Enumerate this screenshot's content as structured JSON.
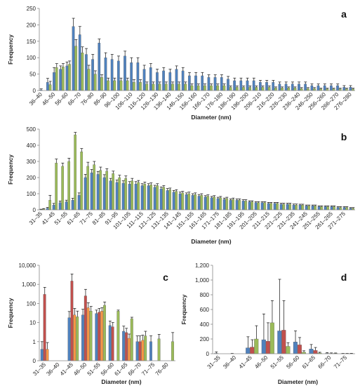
{
  "colors": {
    "blue": "#4F81BD",
    "red": "#C0504D",
    "green": "#9BBB59",
    "orange": "#F79646",
    "purple": "#8064A2"
  },
  "chart_data": [
    {
      "id": "a",
      "type": "bar",
      "letter": "a",
      "xlabel": "Diameter (nm)",
      "ylabel": "Frequency",
      "ylim": [
        0,
        250
      ],
      "yticks": [
        0,
        50,
        100,
        150,
        200,
        250
      ],
      "log": false,
      "categories": [
        "36–40",
        "41–45",
        "46–50",
        "51–55",
        "56–60",
        "61–65",
        "66–70",
        "71–75",
        "76–80",
        "81–85",
        "86–90",
        "91–95",
        "96–100",
        "101–105",
        "106–110",
        "111–115",
        "116–120",
        "121–125",
        "126–130",
        "131–135",
        "136–140",
        "141–145",
        "146–150",
        "151–155",
        "156–160",
        "161–165",
        "166–170",
        "171–175",
        "176–180",
        "181–185",
        "186–190",
        "191–195",
        "196–200",
        "201–205",
        "206–210",
        "211–215",
        "216–220",
        "221–225",
        "226–230",
        "231–235",
        "236–240",
        "241–245",
        "246–250",
        "251–255",
        "256–260",
        "261–265",
        "266–270",
        "271–275",
        "276–280"
      ],
      "tick_labels": [
        "36–40",
        "46–50",
        "56–60",
        "66–70",
        "76–80",
        "86–90",
        "96–100",
        "106–110",
        "116–120",
        "126–130",
        "136–140",
        "146–150",
        "156–160",
        "166–170",
        "176–180",
        "186–190",
        "196–200",
        "206–210",
        "216–220",
        "226–230",
        "236–240",
        "246–250",
        "256–260",
        "266–270",
        "276–280"
      ],
      "series": [
        {
          "color": "blue",
          "values": [
            2,
            25,
            55,
            65,
            75,
            195,
            170,
            110,
            95,
            145,
            100,
            95,
            90,
            105,
            85,
            85,
            65,
            70,
            55,
            60,
            55,
            65,
            60,
            45,
            45,
            45,
            40,
            40,
            40,
            35,
            30,
            30,
            30,
            30,
            25,
            25,
            25,
            20,
            20,
            20,
            20,
            20,
            15,
            15,
            15,
            15,
            15,
            10,
            10
          ],
          "err": [
            3,
            12,
            15,
            10,
            12,
            25,
            25,
            18,
            15,
            12,
            15,
            15,
            15,
            15,
            15,
            15,
            12,
            12,
            10,
            10,
            10,
            10,
            10,
            10,
            10,
            10,
            8,
            8,
            8,
            8,
            8,
            8,
            8,
            8,
            6,
            6,
            6,
            6,
            6,
            6,
            6,
            6,
            5,
            5,
            5,
            5,
            5,
            5,
            5
          ]
        },
        {
          "color": "green",
          "values": [
            0,
            18,
            70,
            72,
            80,
            135,
            115,
            65,
            50,
            40,
            30,
            30,
            30,
            30,
            25,
            25,
            20,
            20,
            20,
            20,
            20,
            20,
            20,
            15,
            15,
            15,
            15,
            15,
            15,
            10,
            10,
            10,
            10,
            10,
            10,
            10,
            8,
            8,
            8,
            8,
            6,
            6,
            6,
            5,
            5,
            5,
            5,
            5,
            5
          ],
          "err": [
            0,
            10,
            12,
            10,
            10,
            20,
            18,
            12,
            10,
            8,
            8,
            8,
            8,
            8,
            8,
            8,
            6,
            6,
            6,
            6,
            6,
            6,
            6,
            5,
            5,
            5,
            5,
            5,
            5,
            4,
            4,
            4,
            4,
            4,
            4,
            4,
            3,
            3,
            3,
            3,
            3,
            3,
            3,
            2,
            2,
            2,
            2,
            2,
            2
          ]
        }
      ]
    },
    {
      "id": "b",
      "type": "bar",
      "letter": "b",
      "xlabel": "Diameter (nm)",
      "ylabel": "Frequency",
      "ylim": [
        0,
        500
      ],
      "yticks": [
        0,
        100,
        200,
        300,
        400,
        500
      ],
      "log": false,
      "categories": [
        "31–35",
        "36–40",
        "41–45",
        "46–50",
        "51–55",
        "56–60",
        "61–65",
        "66–70",
        "71–75",
        "76–80",
        "81–85",
        "86–90",
        "91–95",
        "96–100",
        "101–105",
        "106–110",
        "111–115",
        "116–120",
        "121–125",
        "126–130",
        "131–135",
        "136–140",
        "141–145",
        "146–150",
        "151–155",
        "156–160",
        "161–165",
        "166–170",
        "171–175",
        "176–180",
        "181–185",
        "186–190",
        "191–195",
        "196–200",
        "201–205",
        "206–210",
        "211–215",
        "216–220",
        "221–225",
        "226–230",
        "231–235",
        "236–240",
        "241–245",
        "246–250",
        "251–255",
        "256–260",
        "261–265",
        "266–270",
        "271–275",
        "276–280"
      ],
      "tick_labels": [
        "31–35",
        "41–45",
        "51–55",
        "61–65",
        "71–75",
        "81–85",
        "91–95",
        "101–105",
        "111–115",
        "121–125",
        "131–135",
        "141–145",
        "151–155",
        "161–165",
        "171–175",
        "181–185",
        "191–195",
        "201–205",
        "211–215",
        "221–225",
        "231–235",
        "241–245",
        "251–255",
        "261–265",
        "271–275"
      ],
      "series": [
        {
          "color": "blue",
          "values": [
            2,
            10,
            30,
            45,
            50,
            60,
            90,
            200,
            230,
            220,
            200,
            180,
            170,
            165,
            160,
            160,
            150,
            150,
            140,
            130,
            120,
            110,
            100,
            95,
            90,
            85,
            80,
            75,
            70,
            65,
            60,
            60,
            55,
            50,
            45,
            45,
            40,
            40,
            35,
            35,
            30,
            30,
            25,
            25,
            20,
            20,
            20,
            15,
            15,
            10
          ],
          "err": [
            2,
            5,
            10,
            10,
            10,
            12,
            15,
            20,
            20,
            18,
            18,
            15,
            15,
            15,
            15,
            15,
            12,
            12,
            12,
            12,
            12,
            10,
            10,
            10,
            10,
            10,
            8,
            8,
            8,
            8,
            8,
            8,
            8,
            6,
            6,
            6,
            6,
            6,
            6,
            6,
            6,
            5,
            5,
            5,
            5,
            5,
            5,
            5,
            5,
            4
          ]
        },
        {
          "color": "green",
          "values": [
            5,
            60,
            290,
            270,
            300,
            465,
            360,
            270,
            280,
            245,
            240,
            225,
            200,
            195,
            180,
            170,
            160,
            155,
            150,
            140,
            125,
            115,
            105,
            100,
            95,
            90,
            85,
            80,
            75,
            70,
            65,
            60,
            55,
            50,
            45,
            45,
            40,
            40,
            35,
            35,
            30,
            30,
            25,
            25,
            20,
            20,
            20,
            15,
            15,
            10
          ],
          "err": [
            3,
            30,
            25,
            20,
            20,
            15,
            20,
            25,
            20,
            20,
            15,
            15,
            15,
            15,
            15,
            12,
            12,
            12,
            12,
            10,
            10,
            10,
            10,
            10,
            10,
            10,
            8,
            8,
            8,
            8,
            8,
            8,
            8,
            6,
            6,
            6,
            6,
            6,
            6,
            6,
            6,
            5,
            5,
            5,
            5,
            5,
            5,
            5,
            5,
            4
          ]
        }
      ]
    },
    {
      "id": "c",
      "type": "bar",
      "letter": "c",
      "xlabel": "Diameter (nm)",
      "ylabel": "Frequency",
      "log": true,
      "ylim": [
        0.1,
        10000
      ],
      "yticks": [
        0.1,
        1,
        10,
        100,
        1000,
        10000
      ],
      "ytick_labels": [
        "0",
        "1",
        "10",
        "100",
        "1,000",
        "10,000"
      ],
      "categories": [
        "31–35",
        "36–40",
        "41–45",
        "46–50",
        "51–55",
        "56–60",
        "61–65",
        "66–70",
        "71–75",
        "76–80"
      ],
      "tick_labels": [
        "31–35",
        "36–40",
        "41–45",
        "46–50",
        "51–55",
        "56–60",
        "61–65",
        "66–70",
        "71–75",
        "76–80"
      ],
      "series": [
        {
          "color": "blue",
          "values": [
            0.4,
            null,
            18,
            25,
            30,
            7,
            3.5,
            1,
            1,
            null
          ],
          "err": [
            0.6,
            null,
            20,
            25,
            15,
            5,
            3,
            1,
            1,
            null
          ]
        },
        {
          "color": "red",
          "values": [
            300,
            null,
            1500,
            250,
            35,
            6,
            3,
            1,
            null,
            null
          ],
          "err": [
            400,
            null,
            2000,
            300,
            20,
            4,
            2,
            1,
            null,
            null
          ]
        },
        {
          "color": "orange",
          "values": [
            0.4,
            null,
            25,
            60,
            40,
            null,
            1.5,
            1.2,
            null,
            null
          ],
          "err": [
            0.5,
            null,
            30,
            50,
            20,
            null,
            1,
            1,
            null,
            null
          ]
        },
        {
          "color": "green",
          "values": [
            null,
            null,
            20,
            40,
            80,
            40,
            16,
            2,
            1.4,
            1
          ],
          "err": [
            null,
            null,
            20,
            30,
            40,
            5,
            3,
            1.5,
            1,
            2
          ]
        }
      ]
    },
    {
      "id": "d",
      "type": "bar",
      "letter": "d",
      "xlabel": "Diameter (nm)",
      "ylabel": "Frequency",
      "ylim": [
        0,
        1200
      ],
      "yticks": [
        0,
        200,
        400,
        600,
        800,
        1000,
        1200
      ],
      "ytick_labels": [
        "0",
        "200",
        "400",
        "600",
        "800",
        "1,000",
        "1,200"
      ],
      "log": false,
      "categories": [
        "31–35",
        "36–40",
        "41–45",
        "46–50",
        "51–55",
        "56–60",
        "61–65",
        "66–70",
        "71–75"
      ],
      "tick_labels": [
        "31–35",
        "36–40",
        "41–45",
        "46–50",
        "51–55",
        "56–60",
        "61–65",
        "66–70",
        "71–75"
      ],
      "series": [
        {
          "color": "blue",
          "values": [
            5,
            0,
            80,
            190,
            310,
            160,
            65,
            5,
            2
          ],
          "err": [
            20,
            5,
            150,
            350,
            700,
            150,
            60,
            10,
            3
          ]
        },
        {
          "color": "red",
          "values": [
            0,
            0,
            90,
            170,
            320,
            120,
            45,
            3,
            2
          ],
          "err": [
            0,
            0,
            100,
            250,
            400,
            100,
            40,
            8,
            3
          ]
        },
        {
          "color": "green",
          "values": [
            0,
            0,
            200,
            420,
            100,
            20,
            10,
            5,
            3
          ],
          "err": [
            0,
            0,
            180,
            300,
            50,
            20,
            10,
            5,
            3
          ]
        }
      ]
    }
  ]
}
